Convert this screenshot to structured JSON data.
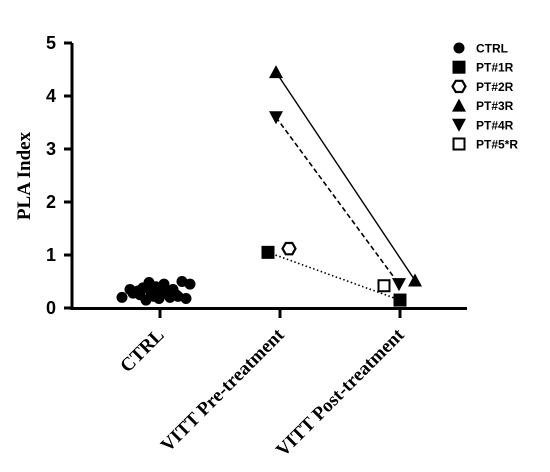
{
  "chart_data": {
    "type": "scatter",
    "ylabel": "PLA Index",
    "ylim": [
      0,
      5
    ],
    "yticks": [
      "0",
      "1",
      "2",
      "3",
      "4",
      "5"
    ],
    "categories": [
      "CTRL",
      "VITT Pre-treatment",
      "VITT Post-treatment"
    ],
    "legend_position": "top-right",
    "series": [
      {
        "name": "CTRL",
        "marker": "circle-filled",
        "color": "#000000",
        "points": [
          {
            "x": "CTRL",
            "y": 0.2
          },
          {
            "x": "CTRL",
            "y": 0.35
          },
          {
            "x": "CTRL",
            "y": 0.28
          },
          {
            "x": "CTRL",
            "y": 0.32
          },
          {
            "x": "CTRL",
            "y": 0.25
          },
          {
            "x": "CTRL",
            "y": 0.38
          },
          {
            "x": "CTRL",
            "y": 0.15
          },
          {
            "x": "CTRL",
            "y": 0.48
          },
          {
            "x": "CTRL",
            "y": 0.3
          },
          {
            "x": "CTRL",
            "y": 0.22
          },
          {
            "x": "CTRL",
            "y": 0.4
          },
          {
            "x": "CTRL",
            "y": 0.18
          },
          {
            "x": "CTRL",
            "y": 0.28
          },
          {
            "x": "CTRL",
            "y": 0.45
          },
          {
            "x": "CTRL",
            "y": 0.32
          },
          {
            "x": "CTRL",
            "y": 0.2
          },
          {
            "x": "CTRL",
            "y": 0.35
          },
          {
            "x": "CTRL",
            "y": 0.25
          },
          {
            "x": "CTRL",
            "y": 0.22
          },
          {
            "x": "CTRL",
            "y": 0.5
          },
          {
            "x": "CTRL",
            "y": 0.18
          },
          {
            "x": "CTRL",
            "y": 0.45
          }
        ]
      },
      {
        "name": "PT#1R",
        "marker": "square-filled",
        "color": "#000000",
        "line": "dotted",
        "points": [
          {
            "x": "VITT Pre-treatment",
            "y": 1.05
          },
          {
            "x": "VITT Post-treatment",
            "y": 0.15
          }
        ]
      },
      {
        "name": "PT#2R",
        "marker": "hexagon-open",
        "color": "#000000",
        "line": "none",
        "points": [
          {
            "x": "VITT Pre-treatment",
            "y": 1.12
          }
        ]
      },
      {
        "name": "PT#3R",
        "marker": "triangle-up-filled",
        "color": "#000000",
        "line": "solid",
        "points": [
          {
            "x": "VITT Pre-treatment",
            "y": 4.45
          },
          {
            "x": "VITT Post-treatment",
            "y": 0.52
          }
        ]
      },
      {
        "name": "PT#4R",
        "marker": "triangle-down-filled",
        "color": "#000000",
        "line": "dashed",
        "points": [
          {
            "x": "VITT Pre-treatment",
            "y": 3.6
          },
          {
            "x": "VITT Post-treatment",
            "y": 0.45
          }
        ]
      },
      {
        "name": "PT#5*R",
        "marker": "square-open",
        "color": "#000000",
        "line": "none",
        "points": [
          {
            "x": "VITT Post-treatment",
            "y": 0.42
          }
        ]
      }
    ]
  }
}
